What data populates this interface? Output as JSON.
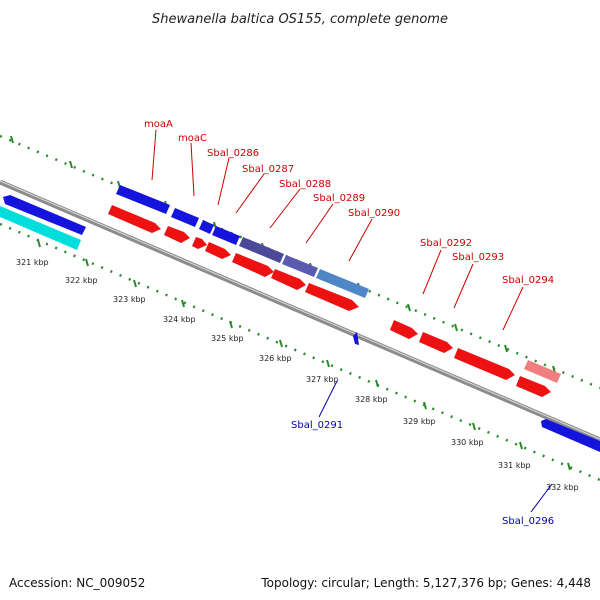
{
  "title": "Shewanella baltica OS155, complete genome",
  "footer": {
    "accession": "Accession: NC_009052",
    "summary": "Topology: circular; Length: 5,127,376 bp; Genes: 4,448"
  },
  "colors": {
    "backbone": "#8c8c8c",
    "backbone_highlight": "#dcdcdc",
    "ruler_dots": "#2a8a2a",
    "forward_cds": "#1414dc",
    "reverse_cds": "#ee1111",
    "rna": "#00dddd",
    "trna_like_forward": "#4a4a98",
    "light_blue_feature": "#4f86c6",
    "light_red_feature": "#f08080",
    "label_red": "#cc0000",
    "label_blue": "#0000aa"
  },
  "scale_ticks": [
    "321 kbp",
    "322 kbp",
    "323 kbp",
    "324 kbp",
    "325 kbp",
    "326 kbp",
    "327 kbp",
    "328 kbp",
    "329 kbp",
    "330 kbp",
    "331 kbp",
    "332 kbp"
  ],
  "gene_labels_top": [
    "moaA",
    "moaC",
    "Sbal_0286",
    "Sbal_0287",
    "Sbal_0288",
    "Sbal_0289",
    "Sbal_0290",
    "Sbal_0292",
    "Sbal_0293",
    "Sbal_0294"
  ],
  "gene_labels_bottom": [
    "Sbal_0291",
    "Sbal_0296"
  ]
}
